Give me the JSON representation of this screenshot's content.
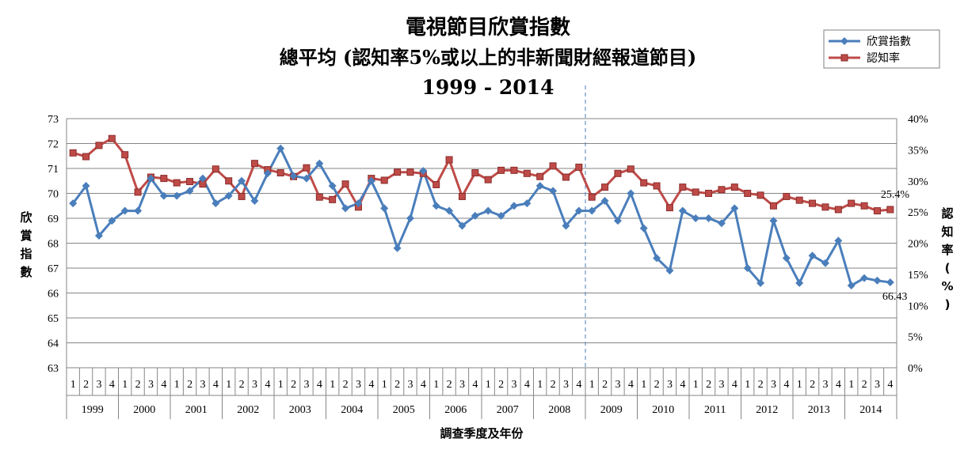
{
  "chart_data": {
    "type": "line",
    "title": [
      "電視節目欣賞指數",
      "總平均 (認知率5%或以上的非新聞財經報道節目)",
      "1999 - 2014"
    ],
    "xlabel": "調查季度及年份",
    "ylabel": "欣賞指數",
    "y2label": "認知率(%)",
    "ylim": [
      63,
      73
    ],
    "y2lim": [
      0,
      40
    ],
    "yticks": [
      "63",
      "64",
      "65",
      "66",
      "67",
      "68",
      "69",
      "70",
      "71",
      "72",
      "73"
    ],
    "y2ticks": [
      "0%",
      "5%",
      "10%",
      "15%",
      "20%",
      "25%",
      "30%",
      "35%",
      "40%"
    ],
    "quarters": [
      "1",
      "2",
      "3",
      "4"
    ],
    "years": [
      "1999",
      "2000",
      "2001",
      "2002",
      "2003",
      "2004",
      "2005",
      "2006",
      "2007",
      "2008",
      "2009",
      "2010",
      "2011",
      "2012",
      "2013",
      "2014"
    ],
    "divider_after_index": 39,
    "legend_position": "top-right",
    "series": [
      {
        "name": "欣賞指數",
        "axis": "left",
        "color": "#4a7ebb",
        "marker": "diamond",
        "values": [
          69.6,
          70.3,
          68.3,
          68.9,
          69.3,
          69.3,
          70.6,
          69.9,
          69.9,
          70.1,
          70.6,
          69.6,
          69.9,
          70.5,
          69.7,
          70.8,
          71.8,
          70.7,
          70.6,
          71.2,
          70.3,
          69.4,
          69.6,
          70.5,
          69.4,
          67.8,
          69.0,
          70.9,
          69.5,
          69.3,
          68.7,
          69.1,
          69.3,
          69.1,
          69.5,
          69.6,
          70.3,
          70.1,
          68.7,
          69.3,
          69.3,
          69.7,
          68.9,
          70.0,
          68.6,
          67.4,
          66.9,
          69.3,
          69.0,
          69.0,
          68.8,
          69.4,
          67.0,
          66.4,
          68.9,
          67.4,
          66.4,
          67.5,
          67.2,
          68.1,
          66.3,
          66.6,
          66.5,
          66.43
        ]
      },
      {
        "name": "認知率",
        "axis": "right",
        "color": "#be4b48",
        "marker": "square",
        "values": [
          34.5,
          33.9,
          35.7,
          36.8,
          34.2,
          28.2,
          30.6,
          30.4,
          29.7,
          29.9,
          29.5,
          31.9,
          30.0,
          27.5,
          32.8,
          31.8,
          31.3,
          30.7,
          32.1,
          27.4,
          27.0,
          29.5,
          25.8,
          30.4,
          30.1,
          31.4,
          31.4,
          31.2,
          29.4,
          33.4,
          27.5,
          31.3,
          30.2,
          31.7,
          31.7,
          31.2,
          30.7,
          32.4,
          30.6,
          32.2,
          27.4,
          29.0,
          31.2,
          31.9,
          29.7,
          29.2,
          25.7,
          29.0,
          28.2,
          28.0,
          28.6,
          29.0,
          28.0,
          27.7,
          26.0,
          27.5,
          26.9,
          26.4,
          25.8,
          25.4,
          26.4,
          26.0,
          25.2,
          25.4
        ]
      }
    ],
    "annotations": [
      {
        "series": 0,
        "index": 63,
        "text": "66.43"
      },
      {
        "series": 1,
        "index": 63,
        "text": "25.4%"
      }
    ]
  },
  "label_chars": {
    "ylabel": [
      "欣",
      "賞",
      "指",
      "數"
    ],
    "y2label": [
      "認",
      "知",
      "率",
      "(",
      "%",
      ")"
    ]
  }
}
